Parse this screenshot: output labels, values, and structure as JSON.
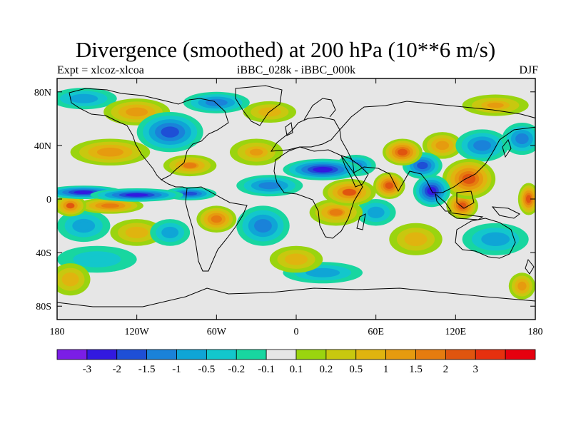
{
  "title": "Divergence (smoothed) at 200 hPa (10**6 m/s)",
  "subtitle_left": "Expt = xlcoz-xlcoa",
  "subtitle_center": "iBBC_028k - iBBC_000k",
  "subtitle_right": "DJF",
  "chart_data": {
    "type": "heatmap",
    "title": "Divergence (smoothed) at 200 hPa (10**6 m/s)",
    "projection": "cylindrical equidistant",
    "xlim": [
      -180,
      180
    ],
    "ylim": [
      -90,
      90
    ],
    "x_ticks": [
      {
        "value": -180,
        "label": "180"
      },
      {
        "value": -120,
        "label": "120W"
      },
      {
        "value": -60,
        "label": "60W"
      },
      {
        "value": 0,
        "label": "0"
      },
      {
        "value": 60,
        "label": "60E"
      },
      {
        "value": 120,
        "label": "120E"
      },
      {
        "value": 180,
        "label": "180"
      }
    ],
    "y_ticks": [
      {
        "value": 80,
        "label": "80N"
      },
      {
        "value": 40,
        "label": "40N"
      },
      {
        "value": 0,
        "label": "0"
      },
      {
        "value": -40,
        "label": "40S"
      },
      {
        "value": -80,
        "label": "80S"
      }
    ],
    "colorbar": {
      "colors": [
        "#7b1ee6",
        "#3219e0",
        "#1e4fd6",
        "#1a82d9",
        "#0fa5d6",
        "#13c7cc",
        "#18d6a0",
        "#e6e6e6",
        "#9ad40f",
        "#c8c80f",
        "#e0b40f",
        "#e69b0f",
        "#e67c0f",
        "#e0550f",
        "#e6300f",
        "#e6000f"
      ],
      "labels": [
        "-3",
        "-2",
        "-1.5",
        "-1",
        "-0.5",
        "-0.2",
        "-0.1",
        "0.1",
        "0.2",
        "0.5",
        "1",
        "1.5",
        "2",
        "3"
      ],
      "label_boundary_index": [
        1,
        2,
        3,
        4,
        5,
        6,
        7,
        8,
        9,
        10,
        11,
        12,
        13,
        14
      ],
      "levels": [
        -3.5,
        -3,
        -2,
        -1.5,
        -1,
        -0.5,
        -0.2,
        -0.1,
        0.1,
        0.2,
        0.5,
        1,
        1.5,
        2,
        3,
        3.5
      ]
    },
    "features": [
      {
        "lon": -160,
        "lat": 5,
        "value": -2.2,
        "w": 30,
        "h": 5
      },
      {
        "lon": -120,
        "lat": 3,
        "value": -2.6,
        "w": 35,
        "h": 5
      },
      {
        "lon": -80,
        "lat": 4,
        "value": -2.0,
        "w": 20,
        "h": 5
      },
      {
        "lon": -20,
        "lat": 10,
        "value": -1.5,
        "w": 25,
        "h": 8
      },
      {
        "lon": 20,
        "lat": 22,
        "value": -2.4,
        "w": 30,
        "h": 8
      },
      {
        "lon": 45,
        "lat": 25,
        "value": -1.2,
        "w": 15,
        "h": 8
      },
      {
        "lon": 102,
        "lat": 6,
        "value": -3.0,
        "w": 14,
        "h": 12
      },
      {
        "lon": 95,
        "lat": 25,
        "value": -1.6,
        "w": 15,
        "h": 10
      },
      {
        "lon": 140,
        "lat": 40,
        "value": -1.4,
        "w": 20,
        "h": 12
      },
      {
        "lon": 170,
        "lat": 45,
        "value": -1.2,
        "w": 15,
        "h": 12
      },
      {
        "lon": -95,
        "lat": 50,
        "value": -1.8,
        "w": 25,
        "h": 15
      },
      {
        "lon": -60,
        "lat": 72,
        "value": -1.5,
        "w": 25,
        "h": 8
      },
      {
        "lon": -160,
        "lat": 75,
        "value": -0.8,
        "w": 25,
        "h": 8
      },
      {
        "lon": -160,
        "lat": -20,
        "value": -0.7,
        "w": 20,
        "h": 12
      },
      {
        "lon": -95,
        "lat": -25,
        "value": -1.0,
        "w": 15,
        "h": 10
      },
      {
        "lon": -25,
        "lat": -20,
        "value": -1.3,
        "w": 20,
        "h": 15
      },
      {
        "lon": 60,
        "lat": -10,
        "value": -0.8,
        "w": 15,
        "h": 10
      },
      {
        "lon": 20,
        "lat": -55,
        "value": -0.6,
        "w": 30,
        "h": 8
      },
      {
        "lon": 150,
        "lat": -30,
        "value": -0.9,
        "w": 25,
        "h": 12
      },
      {
        "lon": -150,
        "lat": -45,
        "value": -0.5,
        "w": 30,
        "h": 10
      },
      {
        "lon": 175,
        "lat": 0,
        "value": 2.4,
        "w": 8,
        "h": 12
      },
      {
        "lon": -170,
        "lat": -5,
        "value": 2.0,
        "w": 12,
        "h": 8
      },
      {
        "lon": -140,
        "lat": -5,
        "value": 1.6,
        "w": 25,
        "h": 6
      },
      {
        "lon": 130,
        "lat": 15,
        "value": 2.8,
        "w": 20,
        "h": 15
      },
      {
        "lon": 125,
        "lat": -5,
        "value": 2.2,
        "w": 12,
        "h": 10
      },
      {
        "lon": 40,
        "lat": 5,
        "value": 2.0,
        "w": 20,
        "h": 10
      },
      {
        "lon": 70,
        "lat": 10,
        "value": 2.6,
        "w": 12,
        "h": 10
      },
      {
        "lon": 30,
        "lat": -10,
        "value": 1.5,
        "w": 20,
        "h": 10
      },
      {
        "lon": 80,
        "lat": 35,
        "value": 2.3,
        "w": 15,
        "h": 10
      },
      {
        "lon": 110,
        "lat": 40,
        "value": 1.3,
        "w": 15,
        "h": 10
      },
      {
        "lon": -140,
        "lat": 35,
        "value": 1.4,
        "w": 30,
        "h": 10
      },
      {
        "lon": -80,
        "lat": 25,
        "value": 1.5,
        "w": 20,
        "h": 8
      },
      {
        "lon": -30,
        "lat": 35,
        "value": 1.0,
        "w": 20,
        "h": 10
      },
      {
        "lon": -120,
        "lat": 65,
        "value": 1.2,
        "w": 25,
        "h": 10
      },
      {
        "lon": -20,
        "lat": 65,
        "value": 0.8,
        "w": 20,
        "h": 8
      },
      {
        "lon": 150,
        "lat": 70,
        "value": 1.0,
        "w": 25,
        "h": 8
      },
      {
        "lon": -120,
        "lat": -25,
        "value": 0.9,
        "w": 20,
        "h": 10
      },
      {
        "lon": -60,
        "lat": -15,
        "value": 1.6,
        "w": 15,
        "h": 10
      },
      {
        "lon": 0,
        "lat": -45,
        "value": 0.8,
        "w": 20,
        "h": 10
      },
      {
        "lon": 90,
        "lat": -30,
        "value": 0.9,
        "w": 20,
        "h": 12
      },
      {
        "lon": -170,
        "lat": -60,
        "value": 0.9,
        "w": 15,
        "h": 12
      },
      {
        "lon": 170,
        "lat": -65,
        "value": 1.2,
        "w": 10,
        "h": 10
      }
    ]
  }
}
